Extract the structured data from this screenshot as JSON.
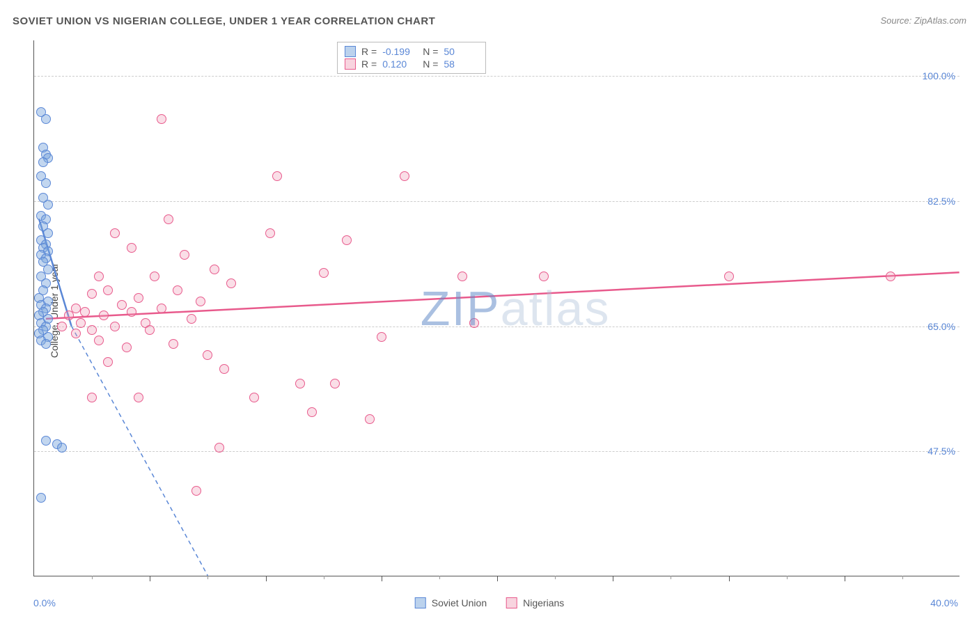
{
  "title": "SOVIET UNION VS NIGERIAN COLLEGE, UNDER 1 YEAR CORRELATION CHART",
  "source": "Source: ZipAtlas.com",
  "ylabel": "College, Under 1 year",
  "xmin_label": "0.0%",
  "xmax_label": "40.0%",
  "watermark": {
    "zip": "ZIP",
    "atlas": "atlas"
  },
  "chart": {
    "type": "scatter",
    "xlim": [
      0,
      40
    ],
    "ylim": [
      30,
      105
    ],
    "yticks": [
      47.5,
      65.0,
      82.5,
      100.0
    ],
    "ytick_labels": [
      "47.5%",
      "65.0%",
      "82.5%",
      "100.0%"
    ],
    "xtick_major_step": 5,
    "xtick_minor_step": 2.5,
    "background_color": "#ffffff",
    "grid_color": "#cccccc",
    "axis_color": "#555555",
    "text_color": "#555555",
    "value_color": "#5a87d6",
    "series": [
      {
        "name": "soviet",
        "label": "Soviet Union",
        "color": "#5a87d6",
        "fill": "rgba(120,165,220,0.45)",
        "R": "-0.199",
        "N": "50",
        "trend": {
          "x1": 0.2,
          "y1": 80,
          "x2": 1.6,
          "y2": 65,
          "dash_x2": 7.5,
          "dash_y2": 30
        },
        "points": [
          [
            0.3,
            95
          ],
          [
            0.5,
            94
          ],
          [
            0.4,
            90
          ],
          [
            0.5,
            89
          ],
          [
            0.6,
            88.5
          ],
          [
            0.4,
            88
          ],
          [
            0.3,
            86
          ],
          [
            0.5,
            85
          ],
          [
            0.4,
            83
          ],
          [
            0.6,
            82
          ],
          [
            0.3,
            80.5
          ],
          [
            0.5,
            80
          ],
          [
            0.4,
            79
          ],
          [
            0.6,
            78
          ],
          [
            0.3,
            77
          ],
          [
            0.5,
            76.5
          ],
          [
            0.4,
            76
          ],
          [
            0.6,
            75.5
          ],
          [
            0.3,
            75
          ],
          [
            0.5,
            74.5
          ],
          [
            0.4,
            74
          ],
          [
            0.6,
            73
          ],
          [
            0.3,
            72
          ],
          [
            0.5,
            71
          ],
          [
            0.4,
            70
          ],
          [
            0.2,
            69
          ],
          [
            0.6,
            68.5
          ],
          [
            0.3,
            68
          ],
          [
            0.5,
            67.5
          ],
          [
            0.4,
            67
          ],
          [
            0.2,
            66.5
          ],
          [
            0.6,
            66
          ],
          [
            0.3,
            65.5
          ],
          [
            0.5,
            65
          ],
          [
            0.4,
            64.5
          ],
          [
            0.2,
            64
          ],
          [
            0.6,
            63.5
          ],
          [
            0.3,
            63
          ],
          [
            0.5,
            62.5
          ],
          [
            0.5,
            49
          ],
          [
            1.0,
            48.5
          ],
          [
            1.2,
            48
          ],
          [
            0.3,
            41
          ]
        ]
      },
      {
        "name": "nigerians",
        "label": "Nigerians",
        "color": "#e85a8c",
        "fill": "rgba(240,160,185,0.35)",
        "R": "0.120",
        "N": "58",
        "trend": {
          "x1": 0.5,
          "y1": 66,
          "x2": 40,
          "y2": 72.5
        },
        "points": [
          [
            5.5,
            94
          ],
          [
            16,
            86
          ],
          [
            10.5,
            86
          ],
          [
            5.8,
            80
          ],
          [
            3.5,
            78
          ],
          [
            10.2,
            78
          ],
          [
            13.5,
            77
          ],
          [
            4.2,
            76
          ],
          [
            6.5,
            75
          ],
          [
            7.8,
            73
          ],
          [
            12.5,
            72.5
          ],
          [
            2.8,
            72
          ],
          [
            5.2,
            72
          ],
          [
            18.5,
            72
          ],
          [
            22,
            72
          ],
          [
            30,
            72
          ],
          [
            37,
            72
          ],
          [
            8.5,
            71
          ],
          [
            3.2,
            70
          ],
          [
            6.2,
            70
          ],
          [
            2.5,
            69.5
          ],
          [
            4.5,
            69
          ],
          [
            7.2,
            68.5
          ],
          [
            3.8,
            68
          ],
          [
            1.8,
            67.5
          ],
          [
            5.5,
            67.5
          ],
          [
            2.2,
            67
          ],
          [
            4.2,
            67
          ],
          [
            1.5,
            66.5
          ],
          [
            3.0,
            66.5
          ],
          [
            6.8,
            66
          ],
          [
            2.0,
            65.5
          ],
          [
            19,
            65.5
          ],
          [
            4.8,
            65.5
          ],
          [
            1.2,
            65
          ],
          [
            3.5,
            65
          ],
          [
            2.5,
            64.5
          ],
          [
            5.0,
            64.5
          ],
          [
            1.8,
            64
          ],
          [
            15,
            63.5
          ],
          [
            2.8,
            63
          ],
          [
            6.0,
            62.5
          ],
          [
            4.0,
            62
          ],
          [
            7.5,
            61
          ],
          [
            3.2,
            60
          ],
          [
            8.2,
            59
          ],
          [
            11.5,
            57
          ],
          [
            13,
            57
          ],
          [
            2.5,
            55
          ],
          [
            4.5,
            55
          ],
          [
            9.5,
            55
          ],
          [
            12,
            53
          ],
          [
            14.5,
            52
          ],
          [
            8.0,
            48
          ],
          [
            7.0,
            42
          ]
        ]
      }
    ]
  },
  "legend_bottom": [
    {
      "label": "Soviet Union",
      "color": "blue"
    },
    {
      "label": "Nigerians",
      "color": "pink"
    }
  ]
}
